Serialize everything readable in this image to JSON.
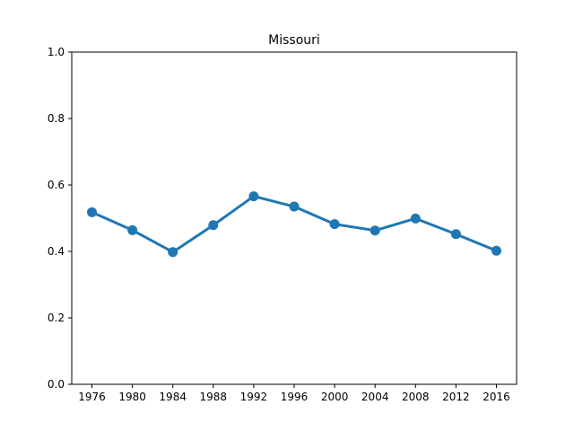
{
  "chart_data": {
    "type": "line",
    "title": "Missouri",
    "xlabel": "",
    "ylabel": "",
    "categories": [
      "1976",
      "1980",
      "1984",
      "1988",
      "1992",
      "1996",
      "2000",
      "2004",
      "2008",
      "2012",
      "2016"
    ],
    "series": [
      {
        "values": [
          0.518,
          0.464,
          0.398,
          0.479,
          0.566,
          0.535,
          0.482,
          0.463,
          0.499,
          0.452,
          0.402
        ]
      }
    ],
    "ylim": [
      0.0,
      1.0
    ],
    "yticks": [
      "0.0",
      "0.2",
      "0.4",
      "0.6",
      "0.8",
      "1.0"
    ],
    "grid": false,
    "line_color": "#1f77b4"
  }
}
